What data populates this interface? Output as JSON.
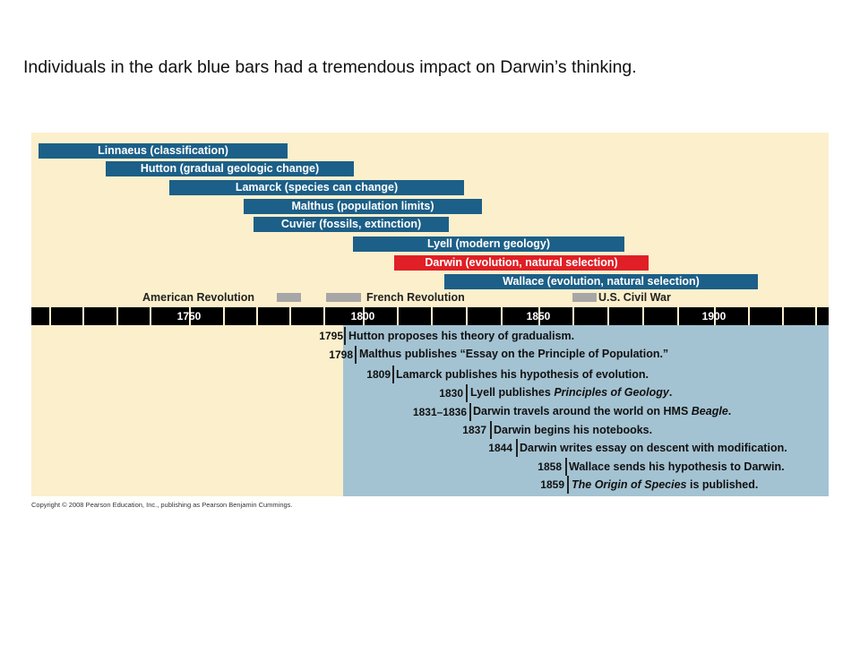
{
  "title": "Individuals in the dark blue bars had a tremendous impact on Darwin’s thinking.",
  "colors": {
    "bar": "#1c5f88",
    "highlight_bar": "#e01f26",
    "background": "#fcefcc",
    "events_region": "#a4c3d2",
    "revolution": "#a7a7a7"
  },
  "bars": [
    {
      "label": "Linnaeus (classification)"
    },
    {
      "label": "Hutton (gradual geologic change)"
    },
    {
      "label": "Lamarck (species can change)"
    },
    {
      "label": "Malthus (population limits)"
    },
    {
      "label": "Cuvier (fossils, extinction)"
    },
    {
      "label": "Lyell (modern geology)"
    },
    {
      "label": "Darwin (evolution, natural selection)"
    },
    {
      "label": "Wallace (evolution, natural selection)"
    }
  ],
  "revolutions": [
    {
      "label": "American Revolution"
    },
    {
      "label": "French Revolution"
    },
    {
      "label": "U.S. Civil War"
    }
  ],
  "axis": {
    "years": [
      "1750",
      "1800",
      "1850",
      "1900"
    ]
  },
  "events": [
    {
      "year": "1795",
      "pre": "Hutton proposes his theory of gradualism.",
      "em": "",
      "post": ""
    },
    {
      "year": "1798",
      "pre": "Malthus publishes “Essay on the Principle of Population.”",
      "em": "",
      "post": ""
    },
    {
      "year": "1809",
      "pre": "Lamarck publishes his hypothesis of evolution.",
      "em": "",
      "post": ""
    },
    {
      "year": "1830",
      "pre": "Lyell publishes ",
      "em": "Principles of Geology",
      "post": "."
    },
    {
      "year": "1831–1836",
      "pre": "Darwin travels around the world on HMS ",
      "em": "Beagle",
      "post": "."
    },
    {
      "year": "1837",
      "pre": "Darwin begins his notebooks.",
      "em": "",
      "post": ""
    },
    {
      "year": "1844",
      "pre": "Darwin writes essay on descent with modification.",
      "em": "",
      "post": ""
    },
    {
      "year": "1858",
      "pre": "Wallace sends his hypothesis to Darwin.",
      "em": "",
      "post": ""
    },
    {
      "year": "1859",
      "pre": "",
      "em": "The Origin of Species",
      "post": " is published."
    }
  ],
  "copyright": "Copyright © 2008 Pearson Education, Inc., publishing as Pearson Benjamin Cummings."
}
